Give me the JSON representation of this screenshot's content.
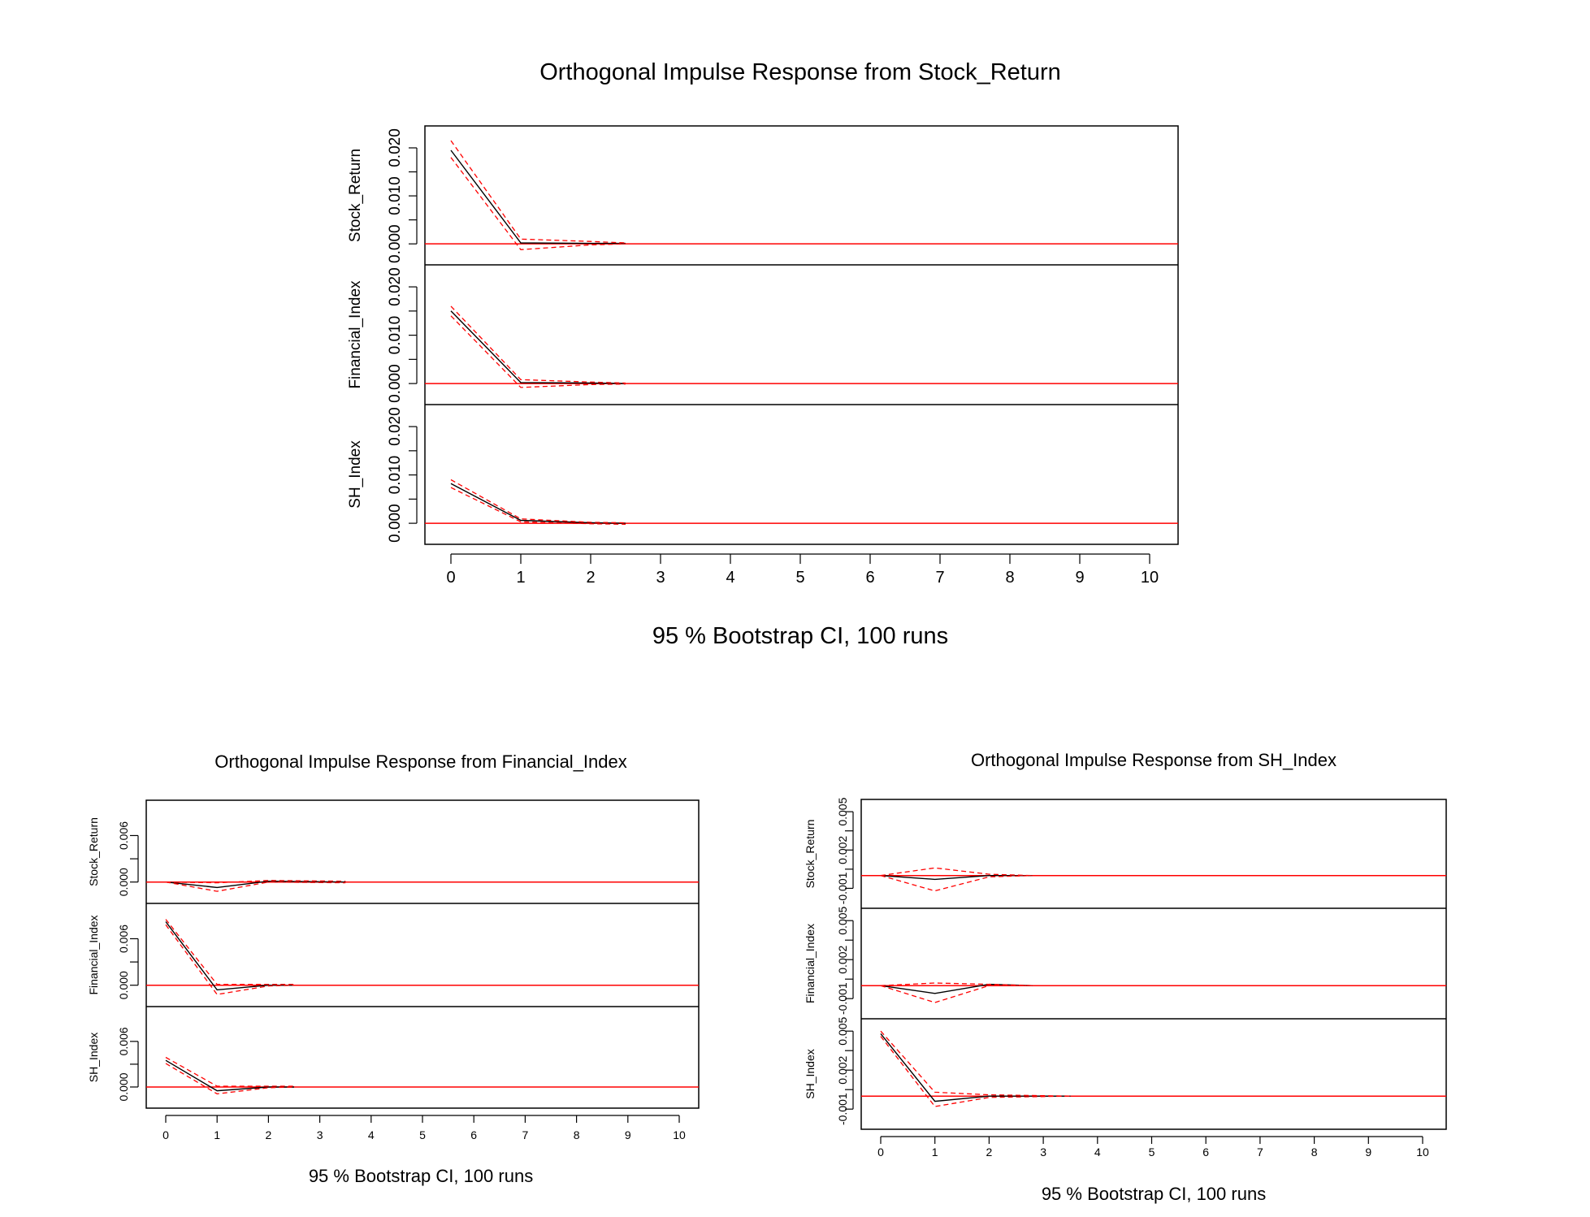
{
  "chart_data": [
    {
      "type": "line",
      "title": "Orthogonal Impulse Response from Stock_Return",
      "xlabel": "95 % Bootstrap CI,  100 runs",
      "x": [
        0,
        1,
        2,
        3,
        4,
        5,
        6,
        7,
        8,
        9,
        10
      ],
      "xticks": [
        "0",
        "1",
        "2",
        "3",
        "4",
        "5",
        "6",
        "7",
        "8",
        "9",
        "10"
      ],
      "panels": [
        {
          "ylabel": "Stock_Return",
          "yticks": [
            "0.000",
            "0.010",
            "0.020"
          ],
          "ylim": [
            -0.002,
            0.0222
          ],
          "series": [
            {
              "type": "response",
              "x": [
                0,
                1,
                2,
                2.5
              ],
              "values": [
                0.0195,
                0.0002,
                0.0001,
                0.0001
              ]
            },
            {
              "type": "upper",
              "x": [
                0,
                1,
                2,
                2.5
              ],
              "values": [
                0.0215,
                0.001,
                0.0005,
                0.0002
              ]
            },
            {
              "type": "lower",
              "x": [
                0,
                1,
                2,
                2.5
              ],
              "values": [
                0.018,
                -0.0012,
                -0.0002,
                0.0
              ]
            }
          ]
        },
        {
          "ylabel": "Financial_Index",
          "yticks": [
            "0.000",
            "0.010",
            "0.020"
          ],
          "ylim": [
            -0.002,
            0.0222
          ],
          "series": [
            {
              "type": "response",
              "x": [
                0,
                1,
                2,
                2.5
              ],
              "values": [
                0.015,
                0.0002,
                0.0001,
                0.0
              ]
            },
            {
              "type": "upper",
              "x": [
                0,
                1,
                2,
                2.5
              ],
              "values": [
                0.016,
                0.0008,
                0.0003,
                0.0001
              ]
            },
            {
              "type": "lower",
              "x": [
                0,
                1,
                2,
                2.5
              ],
              "values": [
                0.014,
                -0.0008,
                -0.0002,
                -0.0001
              ]
            }
          ]
        },
        {
          "ylabel": "SH_Index",
          "yticks": [
            "0.000",
            "0.010",
            "0.020"
          ],
          "ylim": [
            -0.002,
            0.0222
          ],
          "series": [
            {
              "type": "response",
              "x": [
                0,
                1,
                2,
                2.5
              ],
              "values": [
                0.0082,
                0.0006,
                0.0001,
                0.0
              ]
            },
            {
              "type": "upper",
              "x": [
                0,
                1,
                2,
                2.5
              ],
              "values": [
                0.009,
                0.0009,
                0.0002,
                0.0001
              ]
            },
            {
              "type": "lower",
              "x": [
                0,
                1,
                2,
                2.5
              ],
              "values": [
                0.0074,
                0.0003,
                -0.0001,
                -0.0002
              ]
            }
          ]
        }
      ]
    },
    {
      "type": "line",
      "title": "Orthogonal Impulse Response from Financial_Index",
      "xlabel": "95 % Bootstrap CI,  100 runs",
      "x": [
        0,
        1,
        2,
        3,
        4,
        5,
        6,
        7,
        8,
        9,
        10
      ],
      "xticks": [
        "0",
        "1",
        "2",
        "3",
        "4",
        "5",
        "6",
        "7",
        "8",
        "9",
        "10"
      ],
      "panels": [
        {
          "ylabel": "Stock_Return",
          "yticks": [
            "0.000",
            "0.006"
          ],
          "ylim": [
            -0.0015,
            0.0093
          ],
          "series": [
            {
              "type": "response",
              "x": [
                0,
                1,
                2,
                3.5
              ],
              "values": [
                0.0,
                -0.0007,
                0.0001,
                0.0
              ]
            },
            {
              "type": "upper",
              "x": [
                0,
                1,
                2,
                3.5
              ],
              "values": [
                0.0,
                -0.0001,
                0.0002,
                0.0001
              ]
            },
            {
              "type": "lower",
              "x": [
                0,
                1,
                2,
                3.5
              ],
              "values": [
                0.0,
                -0.0012,
                0.0,
                -0.0001
              ]
            }
          ]
        },
        {
          "ylabel": "Financial_Index",
          "yticks": [
            "0.000",
            "0.006"
          ],
          "ylim": [
            -0.0015,
            0.0093
          ],
          "series": [
            {
              "type": "response",
              "x": [
                0,
                1,
                2,
                2.5
              ],
              "values": [
                0.0082,
                -0.0006,
                0.0,
                0.0
              ]
            },
            {
              "type": "upper",
              "x": [
                0,
                1,
                2,
                2.5
              ],
              "values": [
                0.0085,
                0.0001,
                0.0001,
                0.0001
              ]
            },
            {
              "type": "lower",
              "x": [
                0,
                1,
                2,
                2.5
              ],
              "values": [
                0.0078,
                -0.0012,
                -0.0001,
                0.0
              ]
            }
          ]
        },
        {
          "ylabel": "SH_Index",
          "yticks": [
            "0.000",
            "0.006"
          ],
          "ylim": [
            -0.0015,
            0.0093
          ],
          "series": [
            {
              "type": "response",
              "x": [
                0,
                1,
                2,
                2.5
              ],
              "values": [
                0.0035,
                -0.0005,
                0.0,
                0.0
              ]
            },
            {
              "type": "upper",
              "x": [
                0,
                1,
                2,
                2.5
              ],
              "values": [
                0.0039,
                0.0001,
                0.0001,
                0.0001
              ]
            },
            {
              "type": "lower",
              "x": [
                0,
                1,
                2,
                2.5
              ],
              "values": [
                0.0031,
                -0.0009,
                -0.0001,
                0.0
              ]
            }
          ]
        }
      ]
    },
    {
      "type": "line",
      "title": "Orthogonal Impulse Response from SH_Index",
      "xlabel": "95 % Bootstrap CI,  100 runs",
      "x": [
        0,
        1,
        2,
        3,
        4,
        5,
        6,
        7,
        8,
        9,
        10
      ],
      "xticks": [
        "0",
        "1",
        "2",
        "3",
        "4",
        "5",
        "6",
        "7",
        "8",
        "9",
        "10"
      ],
      "panels": [
        {
          "ylabel": "Stock_Return",
          "yticks": [
            "-0.001",
            "0.002",
            "0.005"
          ],
          "ylim": [
            -0.0018,
            0.0052
          ],
          "series": [
            {
              "type": "response",
              "x": [
                0,
                1,
                2,
                2.8
              ],
              "values": [
                0.0,
                -0.0003,
                0.0,
                0.0
              ]
            },
            {
              "type": "upper",
              "x": [
                0,
                1,
                2,
                2.8
              ],
              "values": [
                0.0,
                0.0006,
                0.0001,
                0.0
              ]
            },
            {
              "type": "lower",
              "x": [
                0,
                1,
                2,
                2.8
              ],
              "values": [
                0.0,
                -0.0012,
                -0.0001,
                0.0
              ]
            }
          ]
        },
        {
          "ylabel": "Financial_Index",
          "yticks": [
            "-0.001",
            "0.002",
            "0.005"
          ],
          "ylim": [
            -0.0018,
            0.0052
          ],
          "series": [
            {
              "type": "response",
              "x": [
                0,
                1,
                2,
                2.8
              ],
              "values": [
                0.0,
                -0.0006,
                0.0001,
                0.0
              ]
            },
            {
              "type": "upper",
              "x": [
                0,
                1,
                2,
                2.8
              ],
              "values": [
                0.0,
                0.0002,
                0.0001,
                0.0
              ]
            },
            {
              "type": "lower",
              "x": [
                0,
                1,
                2,
                2.8
              ],
              "values": [
                0.0,
                -0.0013,
                0.0,
                0.0
              ]
            }
          ]
        },
        {
          "ylabel": "SH_Index",
          "yticks": [
            "-0.001",
            "0.002",
            "0.005"
          ],
          "ylim": [
            -0.0018,
            0.0052
          ],
          "series": [
            {
              "type": "response",
              "x": [
                0,
                1,
                2,
                3.5
              ],
              "values": [
                0.0048,
                -0.0004,
                0.0,
                0.0
              ]
            },
            {
              "type": "upper",
              "x": [
                0,
                1,
                2,
                3.5
              ],
              "values": [
                0.005,
                0.0003,
                0.0001,
                0.0
              ]
            },
            {
              "type": "lower",
              "x": [
                0,
                1,
                2,
                3.5
              ],
              "values": [
                0.0046,
                -0.0008,
                -0.0001,
                0.0
              ]
            }
          ]
        }
      ]
    }
  ]
}
